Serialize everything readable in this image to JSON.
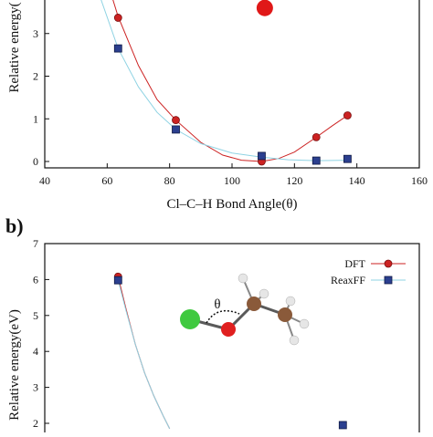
{
  "chart_data": [
    {
      "type": "scatter",
      "panel_label": "",
      "xlabel": "Cl–C–H Bond Angle(θ)",
      "ylabel": "Relative energy(",
      "xlim": [
        40,
        160
      ],
      "ylim": [
        -0.2,
        4.3
      ],
      "x_ticks": [
        "40",
        "60",
        "80",
        "100",
        "120",
        "140",
        "160"
      ],
      "y_ticks": [
        "0",
        "1",
        "2",
        "3"
      ],
      "series": [
        {
          "key": "dft",
          "color": "#cc2222",
          "marker": "circle",
          "points": [
            [
              63.5,
              3.37
            ],
            [
              82,
              0.97
            ],
            [
              109.5,
              0.0
            ],
            [
              127,
              0.57
            ],
            [
              137,
              1.08
            ]
          ],
          "curve": [
            [
              58,
              4.7
            ],
            [
              63.5,
              3.4
            ],
            [
              70,
              2.25
            ],
            [
              76,
              1.45
            ],
            [
              82,
              0.97
            ],
            [
              90,
              0.45
            ],
            [
              97,
              0.15
            ],
            [
              103,
              0.03
            ],
            [
              109.5,
              0.0
            ],
            [
              115,
              0.07
            ],
            [
              120,
              0.22
            ],
            [
              127,
              0.57
            ],
            [
              132,
              0.83
            ],
            [
              137,
              1.08
            ]
          ],
          "highlight_point": [
            110.5,
            3.6
          ]
        },
        {
          "key": "reaxff",
          "color": "#2b3f8f",
          "marker": "square",
          "points": [
            [
              63.5,
              2.65
            ],
            [
              82,
              0.75
            ],
            [
              109.5,
              0.13
            ],
            [
              127,
              0.02
            ],
            [
              137,
              0.06
            ]
          ],
          "curve": [
            [
              58,
              3.8
            ],
            [
              63.5,
              2.65
            ],
            [
              70,
              1.75
            ],
            [
              76,
              1.15
            ],
            [
              82,
              0.75
            ],
            [
              90,
              0.42
            ],
            [
              100,
              0.2
            ],
            [
              109.5,
              0.1
            ],
            [
              118,
              0.04
            ],
            [
              127,
              0.02
            ],
            [
              137,
              0.03
            ]
          ]
        }
      ]
    },
    {
      "type": "scatter",
      "panel_label": "b)",
      "xlabel": "",
      "ylabel": "Relative energy(eV)",
      "xlim": [
        40,
        160
      ],
      "ylim": [
        1.8,
        7
      ],
      "y_ticks": [
        "2",
        "3",
        "4",
        "5",
        "6",
        "7"
      ],
      "legend": [
        "DFT",
        "ReaxFF"
      ],
      "legend_position": "top-right",
      "annotation": "θ",
      "series": [
        {
          "key": "dft",
          "name": "DFT",
          "color": "#cc2222",
          "marker": "circle",
          "points": [
            [
              63.5,
              6.08
            ]
          ],
          "curve": [
            [
              63.5,
              6.08
            ],
            [
              66,
              5.2
            ],
            [
              69,
              4.2
            ],
            [
              72,
              3.4
            ],
            [
              75,
              2.75
            ],
            [
              78,
              2.2
            ],
            [
              80,
              1.85
            ]
          ]
        },
        {
          "key": "reaxff",
          "name": "ReaxFF",
          "color": "#2b3f8f",
          "marker": "square",
          "points": [
            [
              63.5,
              5.98
            ],
            [
              135.5,
              1.95
            ]
          ],
          "curve": [
            [
              63.5,
              5.98
            ],
            [
              66,
              5.15
            ],
            [
              69,
              4.2
            ],
            [
              72,
              3.4
            ],
            [
              75,
              2.75
            ],
            [
              78,
              2.2
            ],
            [
              80,
              1.85
            ]
          ]
        }
      ]
    }
  ]
}
